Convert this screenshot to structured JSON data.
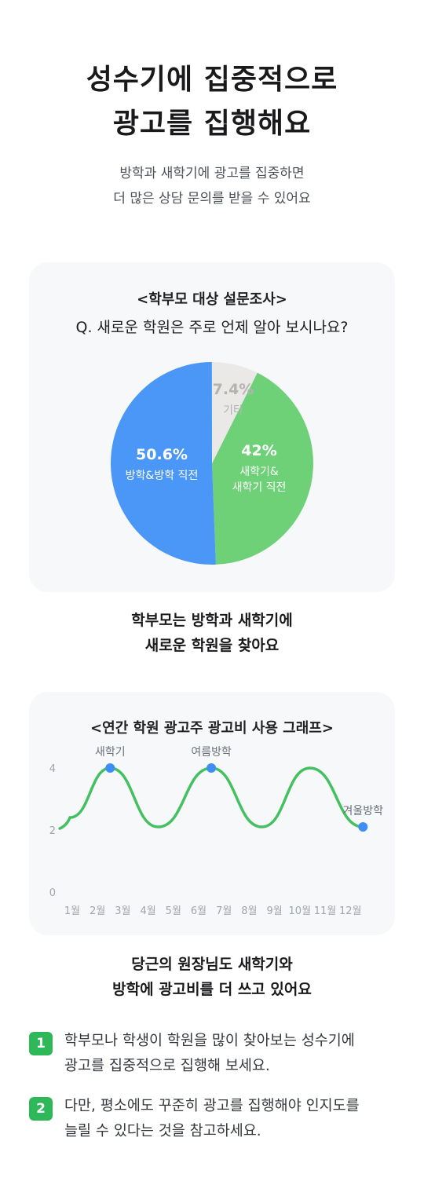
{
  "header": {
    "title_line1": "성수기에 집중적으로",
    "title_line2": "광고를 집행해요",
    "subtitle_line1": "방학과 새학기에 광고를 집중하면",
    "subtitle_line2": "더 많은 상담 문의를 받을 수 있어요"
  },
  "survey": {
    "title": "<학부모 대상 설문조사>",
    "question": "Q. 새로운 학원은 주로 언제 알아 보시나요?",
    "caption_line1": "학부모는 방학과 새학기에",
    "caption_line2": "새로운 학원을 찾아요"
  },
  "graph": {
    "title": "<연간 학원 광고주 광고비 사용 그래프>",
    "caption_line1": "당근의 원장님도 새학기와",
    "caption_line2": "방학에 광고비를 더 쓰고 있어요"
  },
  "tips": [
    {
      "num": "1",
      "line1": "학부모나 학생이 학원을 많이 찾아보는 성수기에",
      "line2": "광고를 집중적으로 집행해 보세요."
    },
    {
      "num": "2",
      "line1": "다만, 평소에도 꾸준히 광고를 집행해야 인지도를",
      "line2": "늘릴 수 있다는 것을 참고하세요."
    }
  ],
  "colors": {
    "blue": "#4a97f7",
    "green": "#6ed178",
    "gray": "#ebe9e7",
    "badge_green": "#2fb85a",
    "card_bg": "#f7f8fa"
  },
  "chart_data": [
    {
      "type": "pie",
      "slices": [
        {
          "label_line1": "방학&방학 직전",
          "label_line2": "",
          "percent_label": "50.6%",
          "value": 50.6,
          "color": "#4a97f7"
        },
        {
          "label_line1": "새학기&",
          "label_line2": "새학기 직전",
          "percent_label": "42%",
          "value": 42,
          "color": "#6ed178"
        },
        {
          "label_line1": "기타",
          "label_line2": "",
          "percent_label": "7.4%",
          "value": 7.4,
          "color": "#ebe9e7"
        }
      ]
    },
    {
      "type": "line",
      "categories": [
        "1월",
        "2월",
        "3월",
        "4월",
        "5월",
        "6월",
        "7월",
        "8월",
        "9월",
        "10월",
        "11월",
        "12월"
      ],
      "y_ticks": [
        "0",
        "2",
        "4"
      ],
      "ylim": [
        0,
        4
      ],
      "x": [
        0.6,
        2.5,
        4.4,
        6.5,
        8.5,
        10.4,
        12.5
      ],
      "values": [
        2.1,
        4,
        2.1,
        4,
        2.1,
        4,
        2.1
      ],
      "peak_labels": [
        {
          "label": "새학기",
          "x": 2.5
        },
        {
          "label": "여름방학",
          "x": 6.5
        },
        {
          "label": "겨울방학",
          "x": 12.5
        }
      ],
      "line_color": "#45c060",
      "marker_color": "#3f8ef5"
    }
  ]
}
